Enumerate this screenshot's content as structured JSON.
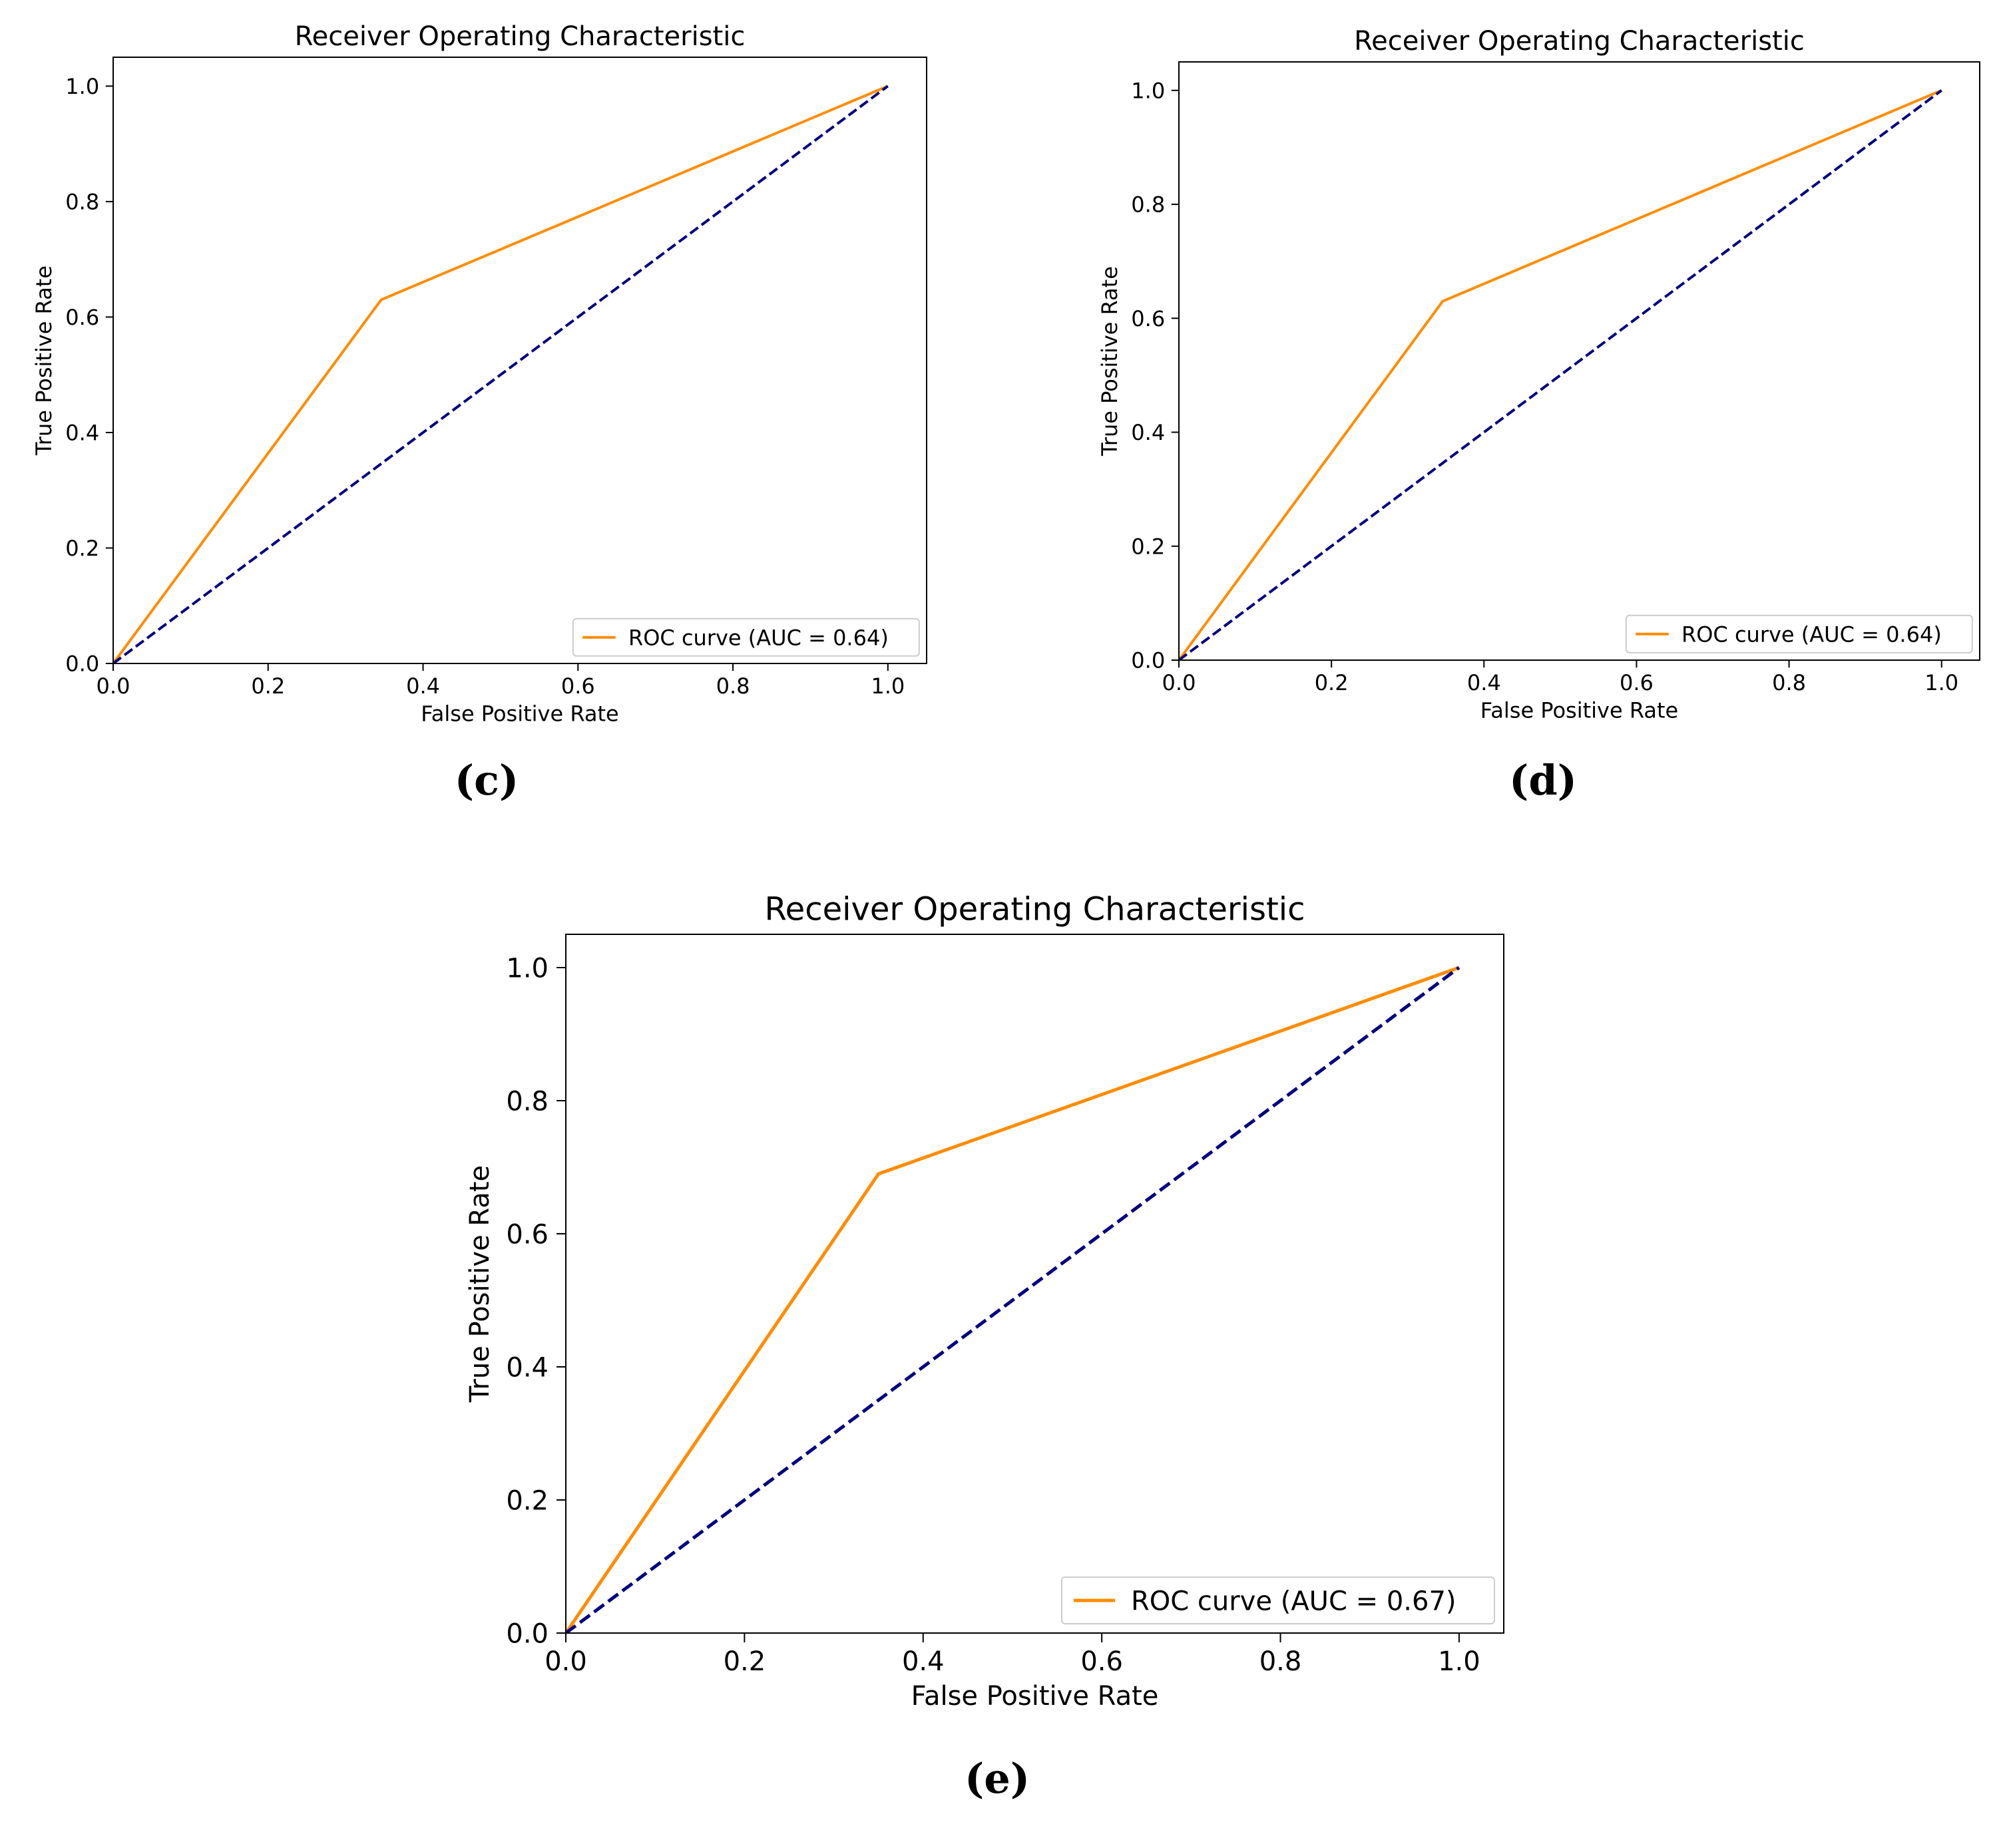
{
  "chart_data": [
    {
      "type": "line",
      "panel_label": "(c)",
      "title": "Receiver Operating Characteristic",
      "xlabel": "False Positive Rate",
      "ylabel": "True Positive Rate",
      "xlim": [
        0.0,
        1.05
      ],
      "ylim": [
        0.0,
        1.05
      ],
      "xticks": [
        "0.0",
        "0.2",
        "0.4",
        "0.6",
        "0.8",
        "1.0"
      ],
      "yticks": [
        "0.0",
        "0.2",
        "0.4",
        "0.6",
        "0.8",
        "1.0"
      ],
      "grid": false,
      "legend_position": "lower right",
      "series": [
        {
          "name": "ROC curve (AUC = 0.64)",
          "color": "#ff8c00",
          "style": "solid",
          "x": [
            0.0,
            0.346,
            1.0
          ],
          "y": [
            0.0,
            0.63,
            1.0
          ]
        },
        {
          "color": "#000080",
          "style": "dashed",
          "x": [
            0.0,
            1.0
          ],
          "y": [
            0.0,
            1.0
          ]
        }
      ]
    },
    {
      "type": "line",
      "panel_label": "(d)",
      "title": "Receiver Operating Characteristic",
      "xlabel": "False Positive Rate",
      "ylabel": "True Positive Rate",
      "xlim": [
        0.0,
        1.05
      ],
      "ylim": [
        0.0,
        1.05
      ],
      "xticks": [
        "0.0",
        "0.2",
        "0.4",
        "0.6",
        "0.8",
        "1.0"
      ],
      "yticks": [
        "0.0",
        "0.2",
        "0.4",
        "0.6",
        "0.8",
        "1.0"
      ],
      "grid": false,
      "legend_position": "lower right",
      "series": [
        {
          "name": "ROC curve (AUC = 0.64)",
          "color": "#ff8c00",
          "style": "solid",
          "x": [
            0.0,
            0.346,
            1.0
          ],
          "y": [
            0.0,
            0.63,
            1.0
          ]
        },
        {
          "color": "#000080",
          "style": "dashed",
          "x": [
            0.0,
            1.0
          ],
          "y": [
            0.0,
            1.0
          ]
        }
      ]
    },
    {
      "type": "line",
      "panel_label": "(e)",
      "title": "Receiver Operating Characteristic",
      "xlabel": "False Positive Rate",
      "ylabel": "True Positive Rate",
      "xlim": [
        0.0,
        1.05
      ],
      "ylim": [
        0.0,
        1.05
      ],
      "xticks": [
        "0.0",
        "0.2",
        "0.4",
        "0.6",
        "0.8",
        "1.0"
      ],
      "yticks": [
        "0.0",
        "0.2",
        "0.4",
        "0.6",
        "0.8",
        "1.0"
      ],
      "grid": false,
      "legend_position": "lower right",
      "series": [
        {
          "name": "ROC curve (AUC = 0.67)",
          "color": "#ff8c00",
          "style": "solid",
          "x": [
            0.0,
            0.35,
            1.0
          ],
          "y": [
            0.0,
            0.69,
            1.0
          ]
        },
        {
          "color": "#000080",
          "style": "dashed",
          "x": [
            0.0,
            1.0
          ],
          "y": [
            0.0,
            1.0
          ]
        }
      ]
    }
  ]
}
